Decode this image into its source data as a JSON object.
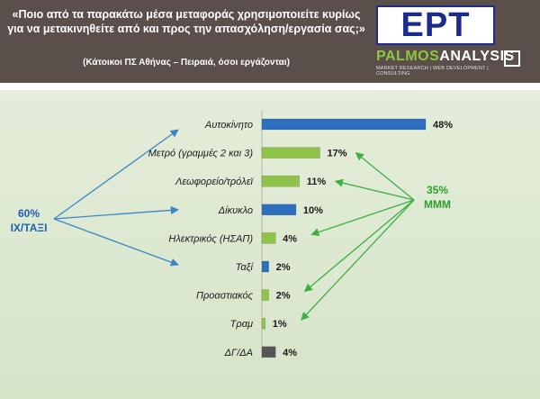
{
  "header": {
    "question": "«Ποιο από τα παρακάτω μέσα μεταφοράς χρησιμοποιείτε κυρίως για να μετακινηθείτε από και προς την απασχόληση/εργασία σας;»",
    "subtitle": "(Κάτοικοι ΠΣ Αθήνας – Πειραιά, όσοι εργάζονται)",
    "logo_text": "EPT",
    "pollster_name_part1": "PALMOS",
    "pollster_name_part2": "ANALYSIS",
    "pollster_tagline": "MARKET RESEARCH | WEB DEVELOPMENT | CONSULTING"
  },
  "annotations": {
    "private_pct": "60%",
    "private_label": "ΙΧ/ΤΑΞΙ",
    "public_pct": "35%",
    "public_label": "ΜΜΜ"
  },
  "colors": {
    "private": "#2e6fc0",
    "public": "#8fc34a",
    "other": "#555555",
    "arrow_blue": "#3a86c8",
    "arrow_green": "#3cb043"
  },
  "chart_data": {
    "type": "bar",
    "orientation": "horizontal",
    "categories": [
      "Αυτοκίνητο",
      "Μετρό (γραμμές 2 και 3)",
      "Λεωφορείο/τρόλεϊ",
      "Δίκυκλο",
      "Ηλεκτρικός (ΗΣΑΠ)",
      "Ταξί",
      "Προαστιακός",
      "Τραμ",
      "ΔΓ/ΔΑ"
    ],
    "values": [
      48,
      17,
      11,
      10,
      4,
      2,
      2,
      1,
      4
    ],
    "value_labels": [
      "48%",
      "17%",
      "11%",
      "10%",
      "4%",
      "2%",
      "2%",
      "1%",
      "4%"
    ],
    "groups": [
      "private",
      "public",
      "public",
      "private",
      "public",
      "private",
      "public",
      "public",
      "other"
    ],
    "unit": "%",
    "xlim": [
      0,
      48
    ],
    "grid": false,
    "legend": "none"
  }
}
